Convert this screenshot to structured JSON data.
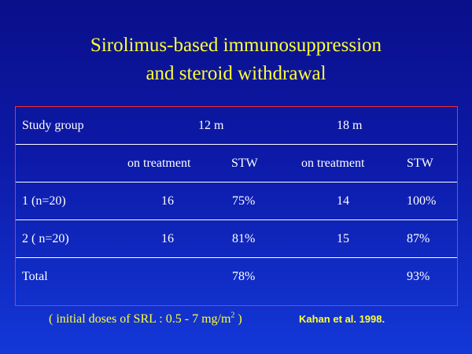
{
  "title": {
    "line1": "Sirolimus-based immunosuppression",
    "line2": "and steroid withdrawal"
  },
  "table": {
    "header": {
      "group_label": "Study group",
      "period_12": "12 m",
      "period_18": "18 m"
    },
    "subheader": {
      "on_treatment_12": "on treatment",
      "stw_12": "STW",
      "on_treatment_18": "on treatment",
      "stw_18": "STW"
    },
    "rows": [
      {
        "group": "1 (n=20)",
        "on_treatment_12": "16",
        "stw_12": "75%",
        "on_treatment_18": "14",
        "stw_18": "100%"
      },
      {
        "group": "2 ( n=20)",
        "on_treatment_12": "16",
        "stw_12": "81%",
        "on_treatment_18": "15",
        "stw_18": "87%"
      },
      {
        "group": "Total",
        "on_treatment_12": "",
        "stw_12": "78%",
        "on_treatment_18": "",
        "stw_18": "93%"
      }
    ]
  },
  "footnote": {
    "text": "( initial doses of SRL : 0.5 - 7 mg/m",
    "superscript": "2",
    "close": " )"
  },
  "citation": "Kahan  et  al. 1998.",
  "colors": {
    "background_top": "#0a0f8a",
    "background_bottom": "#1338d8",
    "title": "#ffff33",
    "table_border": "#ff2a2a",
    "table_text": "#ffffff"
  }
}
